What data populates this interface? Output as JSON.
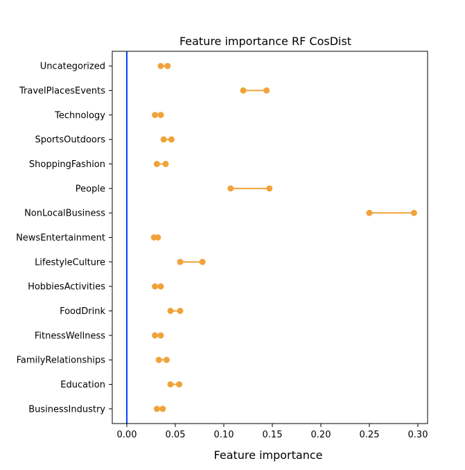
{
  "chart_data": {
    "type": "dumbbell",
    "title": "Feature importance  RF  CosDist",
    "xlabel": "Feature importance",
    "ylabel": "",
    "xlim": [
      -0.015,
      0.31
    ],
    "xticks": [
      0.0,
      0.05,
      0.1,
      0.15,
      0.2,
      0.25,
      0.3
    ],
    "xtick_labels": [
      "0.00",
      "0.05",
      "0.10",
      "0.15",
      "0.20",
      "0.25",
      "0.30"
    ],
    "reference_line_x": 0.0,
    "colors": {
      "marker": "#f0a33a",
      "reference_line": "#0043ff"
    },
    "grid": false,
    "categories": [
      "Uncategorized",
      "TravelPlacesEvents",
      "Technology",
      "SportsOutdoors",
      "ShoppingFashion",
      "People",
      "NonLocalBusiness",
      "NewsEntertainment",
      "LifestyleCulture",
      "HobbiesActivities",
      "FoodDrink",
      "FitnessWellness",
      "FamilyRelationships",
      "Education",
      "BusinessIndustry"
    ],
    "low": [
      0.035,
      0.12,
      0.029,
      0.038,
      0.031,
      0.107,
      0.25,
      0.028,
      0.055,
      0.029,
      0.045,
      0.029,
      0.033,
      0.045,
      0.031
    ],
    "high": [
      0.042,
      0.144,
      0.035,
      0.046,
      0.04,
      0.147,
      0.296,
      0.032,
      0.078,
      0.035,
      0.055,
      0.035,
      0.041,
      0.054,
      0.037
    ]
  }
}
